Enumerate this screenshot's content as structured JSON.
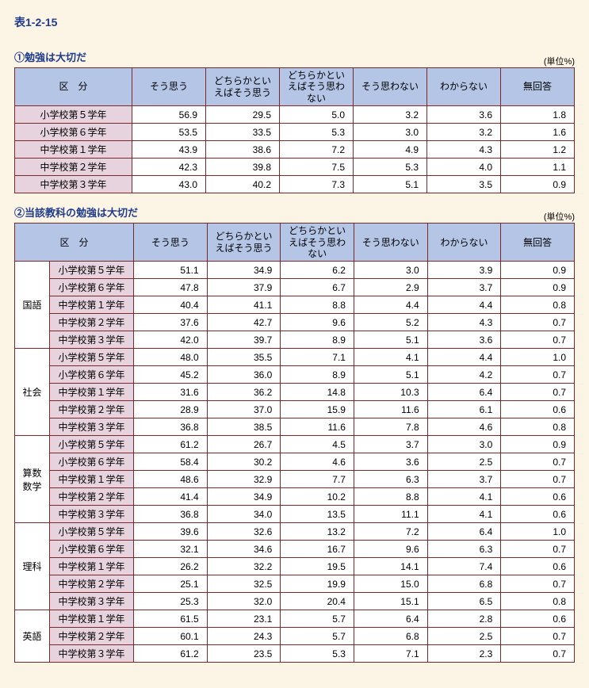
{
  "page_title": "表1-2-15",
  "unit_label": "(単位%)",
  "columns": [
    "そう思う",
    "どちらかといえばそう思う",
    "どちらかといえばそう思わない",
    "そう思わない",
    "わからない",
    "無回答"
  ],
  "kubun_label": "区　分",
  "grades": [
    "小学校第５学年",
    "小学校第６学年",
    "中学校第１学年",
    "中学校第２学年",
    "中学校第３学年"
  ],
  "grades3": [
    "中学校第１学年",
    "中学校第２学年",
    "中学校第３学年"
  ],
  "table1": {
    "title": "①勉強は大切だ",
    "rows": [
      [
        "56.9",
        "29.5",
        "5.0",
        "3.2",
        "3.6",
        "1.8"
      ],
      [
        "53.5",
        "33.5",
        "5.3",
        "3.0",
        "3.2",
        "1.6"
      ],
      [
        "43.9",
        "38.6",
        "7.2",
        "4.9",
        "4.3",
        "1.2"
      ],
      [
        "42.3",
        "39.8",
        "7.5",
        "5.3",
        "4.0",
        "1.1"
      ],
      [
        "43.0",
        "40.2",
        "7.3",
        "5.1",
        "3.5",
        "0.9"
      ]
    ]
  },
  "table2": {
    "title": "②当該教科の勉強は大切だ",
    "subjects": [
      {
        "name": "国語",
        "rows": [
          [
            "51.1",
            "34.9",
            "6.2",
            "3.0",
            "3.9",
            "0.9"
          ],
          [
            "47.8",
            "37.9",
            "6.7",
            "2.9",
            "3.7",
            "0.9"
          ],
          [
            "40.4",
            "41.1",
            "8.8",
            "4.4",
            "4.4",
            "0.8"
          ],
          [
            "37.6",
            "42.7",
            "9.6",
            "5.2",
            "4.3",
            "0.7"
          ],
          [
            "42.0",
            "39.7",
            "8.9",
            "5.1",
            "3.6",
            "0.7"
          ]
        ]
      },
      {
        "name": "社会",
        "rows": [
          [
            "48.0",
            "35.5",
            "7.1",
            "4.1",
            "4.4",
            "1.0"
          ],
          [
            "45.2",
            "36.0",
            "8.9",
            "5.1",
            "4.2",
            "0.7"
          ],
          [
            "31.6",
            "36.2",
            "14.8",
            "10.3",
            "6.4",
            "0.7"
          ],
          [
            "28.9",
            "37.0",
            "15.9",
            "11.6",
            "6.1",
            "0.6"
          ],
          [
            "36.8",
            "38.5",
            "11.6",
            "7.8",
            "4.6",
            "0.8"
          ]
        ]
      },
      {
        "name": "算数数学",
        "rows": [
          [
            "61.2",
            "26.7",
            "4.5",
            "3.7",
            "3.0",
            "0.9"
          ],
          [
            "58.4",
            "30.2",
            "4.6",
            "3.6",
            "2.5",
            "0.7"
          ],
          [
            "48.6",
            "32.9",
            "7.7",
            "6.3",
            "3.7",
            "0.7"
          ],
          [
            "41.4",
            "34.9",
            "10.2",
            "8.8",
            "4.1",
            "0.6"
          ],
          [
            "36.8",
            "34.0",
            "13.5",
            "11.1",
            "4.1",
            "0.6"
          ]
        ]
      },
      {
        "name": "理科",
        "rows": [
          [
            "39.6",
            "32.6",
            "13.2",
            "7.2",
            "6.4",
            "1.0"
          ],
          [
            "32.1",
            "34.6",
            "16.7",
            "9.6",
            "6.3",
            "0.7"
          ],
          [
            "26.2",
            "32.2",
            "19.5",
            "14.1",
            "7.4",
            "0.6"
          ],
          [
            "25.1",
            "32.5",
            "19.9",
            "15.0",
            "6.8",
            "0.7"
          ],
          [
            "25.3",
            "32.0",
            "20.4",
            "15.1",
            "6.5",
            "0.8"
          ]
        ]
      },
      {
        "name": "英語",
        "grades": "3",
        "rows": [
          [
            "61.5",
            "23.1",
            "5.7",
            "6.4",
            "2.8",
            "0.6"
          ],
          [
            "60.1",
            "24.3",
            "5.7",
            "6.8",
            "2.5",
            "0.7"
          ],
          [
            "61.2",
            "23.5",
            "5.3",
            "7.1",
            "2.3",
            "0.7"
          ]
        ]
      }
    ]
  }
}
